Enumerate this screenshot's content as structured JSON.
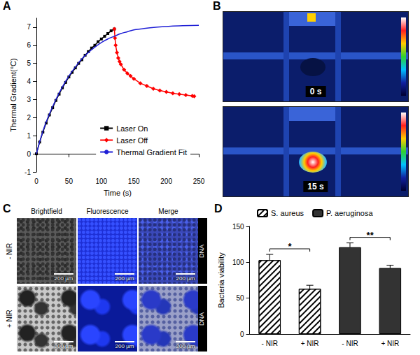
{
  "chart_data": [
    {
      "panel": "A",
      "type": "line",
      "xlabel": "Time (s)",
      "ylabel": "Thermal Gradient(°C)",
      "xlim": [
        0,
        250
      ],
      "xticks": [
        0,
        50,
        100,
        150,
        200,
        250
      ],
      "ylim": [
        -1,
        7.5
      ],
      "yticks": [
        -1,
        0,
        1,
        2,
        3,
        4,
        5,
        6,
        7
      ],
      "grid": false,
      "legend": "lower right",
      "series": [
        {
          "name": "Laser On",
          "color": "#000000",
          "marker": "square",
          "line_style": "solid",
          "x": [
            0,
            5,
            10,
            15,
            20,
            25,
            30,
            35,
            40,
            45,
            50,
            55,
            60,
            65,
            70,
            75,
            80,
            85,
            90,
            95,
            100,
            105,
            110,
            115,
            120
          ],
          "values": [
            0,
            0.65,
            1.2,
            1.7,
            2.15,
            2.55,
            2.95,
            3.3,
            3.65,
            3.95,
            4.25,
            4.5,
            4.75,
            5.0,
            5.2,
            5.45,
            5.65,
            5.85,
            6.0,
            6.2,
            6.35,
            6.5,
            6.65,
            6.8,
            6.9
          ]
        },
        {
          "name": "Laser Off",
          "color": "#ff0000",
          "marker": "diamond",
          "line_style": "solid",
          "x": [
            120,
            121,
            122,
            124,
            126,
            128,
            130,
            135,
            140,
            145,
            150,
            160,
            170,
            180,
            190,
            200,
            210,
            220,
            230,
            240,
            243
          ],
          "values": [
            6.9,
            6.4,
            6.0,
            5.6,
            5.3,
            5.1,
            4.95,
            4.65,
            4.45,
            4.3,
            4.15,
            3.9,
            3.75,
            3.6,
            3.5,
            3.42,
            3.35,
            3.3,
            3.25,
            3.2,
            3.18
          ]
        },
        {
          "name": "Thermal Gradient Fit",
          "color": "#1f1fd6",
          "marker": "none",
          "line_style": "solid",
          "x": [
            0,
            10,
            20,
            30,
            40,
            50,
            60,
            70,
            80,
            90,
            100,
            110,
            120,
            130,
            140,
            150,
            160,
            175,
            200,
            225,
            250
          ],
          "values": [
            0,
            1.25,
            2.2,
            3.0,
            3.7,
            4.3,
            4.8,
            5.25,
            5.6,
            5.9,
            6.15,
            6.35,
            6.5,
            6.65,
            6.75,
            6.85,
            6.9,
            6.97,
            7.04,
            7.08,
            7.1
          ]
        }
      ]
    },
    {
      "panel": "D",
      "type": "bar",
      "ylabel": "Bacteria viability",
      "categories": [
        "- NIR",
        "+ NIR",
        "- NIR",
        "+ NIR"
      ],
      "ylim": [
        0,
        150
      ],
      "yticks": [
        0,
        50,
        100,
        150
      ],
      "grid": false,
      "legend": "top",
      "series": [
        {
          "name": "S. aureus",
          "color": "#ffffff",
          "values": [
            103,
            63,
            null,
            null
          ],
          "errors": [
            8,
            5,
            null,
            null
          ],
          "annotation": "*"
        },
        {
          "name": "P. aeruginosa",
          "color": "#333333",
          "values": [
            null,
            null,
            121,
            92
          ],
          "errors": [
            null,
            null,
            6,
            4
          ],
          "annotation": "**"
        }
      ]
    }
  ],
  "images": [
    {
      "panel": "B",
      "frames": [
        "0 s",
        "15 s"
      ]
    },
    {
      "panel": "C",
      "columns": [
        "Brightfield",
        "Fluorescence",
        "Merge"
      ],
      "rows": [
        "- NIR",
        "+ NIR"
      ],
      "scale_bar": "200 µm",
      "channel": "DNA"
    }
  ]
}
